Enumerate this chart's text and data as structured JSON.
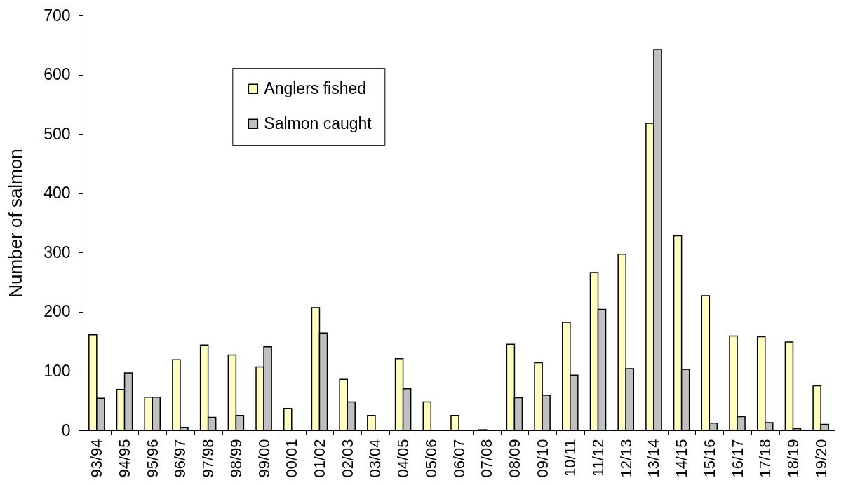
{
  "chart_data": {
    "type": "bar",
    "ylabel": "Number of salmon",
    "categories": [
      "93/94",
      "94/95",
      "95/96",
      "96/97",
      "97/98",
      "98/99",
      "99/00",
      "00/01",
      "01/02",
      "02/03",
      "03/04",
      "04/05",
      "05/06",
      "06/07",
      "07/08",
      "08/09",
      "09/10",
      "10/11",
      "11/12",
      "12/13",
      "13/14",
      "14/15",
      "15/16",
      "16/17",
      "17/18",
      "18/19",
      "19/20"
    ],
    "series": [
      {
        "name": "Anglers fished",
        "color": "#ffffc0",
        "values": [
          161,
          69,
          56,
          119,
          144,
          127,
          107,
          37,
          207,
          86,
          25,
          121,
          48,
          25,
          1,
          145,
          114,
          182,
          266,
          297,
          518,
          328,
          227,
          159,
          158,
          149,
          75
        ]
      },
      {
        "name": "Salmon caught",
        "color": "#c0c0c0",
        "values": [
          54,
          97,
          56,
          5,
          22,
          25,
          141,
          null,
          164,
          48,
          null,
          70,
          null,
          null,
          null,
          55,
          59,
          93,
          204,
          104,
          642,
          103,
          12,
          23,
          13,
          3,
          10
        ]
      }
    ],
    "ylim": [
      0,
      700
    ],
    "yticks": [
      0,
      100,
      200,
      300,
      400,
      500,
      600,
      700
    ],
    "grid": false,
    "legend": "top left"
  }
}
